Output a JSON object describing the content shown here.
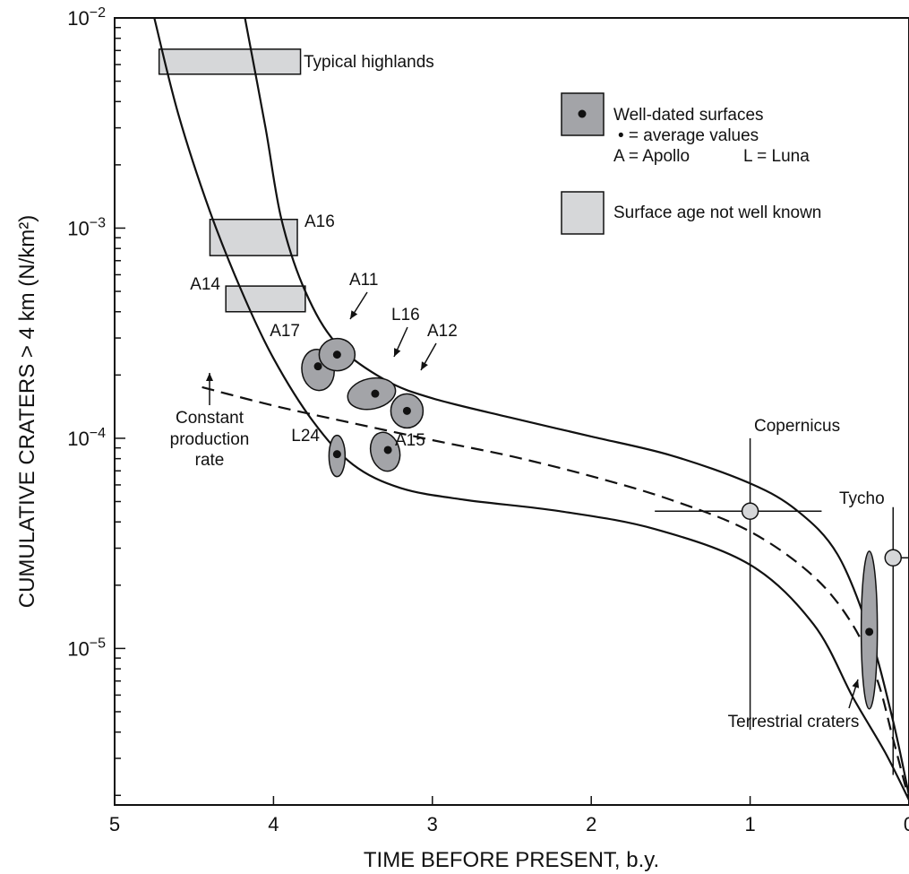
{
  "chart_data": {
    "type": "scatter",
    "title": "",
    "xlabel": "TIME BEFORE PRESENT, b.y.",
    "ylabel": "CUMULATIVE CRATERS > 4 km (N/km²)",
    "x_ticks": [
      "5",
      "4",
      "3",
      "2",
      "1",
      "0"
    ],
    "y_ticks": [
      {
        "base": "10",
        "exp": "−2"
      },
      {
        "base": "10",
        "exp": "−3"
      },
      {
        "base": "10",
        "exp": "−4"
      },
      {
        "base": "10",
        "exp": "−5"
      }
    ],
    "xlim": [
      5,
      0
    ],
    "ylim": [
      1.8e-06,
      0.01
    ],
    "y_scale": "log",
    "legend": {
      "position": "top-right",
      "well_dated": "Well-dated surfaces",
      "dot_note": "• = average values",
      "apollo_note": "A = Apollo",
      "luna_note": "L = Luna",
      "not_well_known": "Surface age not well known",
      "colors": {
        "dark": "#a3a4a8",
        "light": "#d6d7d9"
      }
    },
    "age_bands": [
      {
        "name": "Typical highlands",
        "x": [
          4.72,
          3.83
        ],
        "y": [
          0.0054,
          0.0071
        ]
      },
      {
        "name": "A16",
        "x": [
          4.4,
          3.85
        ],
        "y": [
          0.00074,
          0.0011
        ]
      },
      {
        "name": "A14",
        "x": [
          4.3,
          3.8
        ],
        "y": [
          0.0004,
          0.00053
        ]
      }
    ],
    "well_dated_surfaces": [
      {
        "name": "A17",
        "x": 3.72,
        "y": 0.00022
      },
      {
        "name": "A11",
        "x": 3.6,
        "y": 0.00025
      },
      {
        "name": "L16",
        "x": 3.36,
        "y": 0.000163
      },
      {
        "name": "A12",
        "x": 3.16,
        "y": 0.000135
      },
      {
        "name": "A15",
        "x": 3.28,
        "y": 8.8e-05
      },
      {
        "name": "L24",
        "x": 3.6,
        "y": 8.4e-05
      },
      {
        "name": "Terrestrial craters",
        "x": 0.25,
        "y": 1.2e-05
      }
    ],
    "points_with_error_bars": [
      {
        "name": "Copernicus",
        "x": 1.0,
        "y": 4.5e-05,
        "x_range": [
          1.6,
          0.55
        ],
        "y_range": [
          4.1e-06,
          0.0001
        ]
      },
      {
        "name": "Tycho",
        "x": 0.1,
        "y": 2.7e-05,
        "x_range": [
          0.1,
          0.0
        ],
        "y_range": [
          2.5e-06,
          4.7e-05
        ]
      }
    ],
    "curves": [
      {
        "name": "upper envelope",
        "style": "solid",
        "points": [
          [
            4.18,
            0.01
          ],
          [
            4.05,
            0.003
          ],
          [
            3.95,
            0.0011
          ],
          [
            3.8,
            0.0005
          ],
          [
            3.6,
            0.00028
          ],
          [
            3.3,
            0.00019
          ],
          [
            3.0,
            0.000155
          ],
          [
            2.5,
            0.000125
          ],
          [
            2.0,
            0.000102
          ],
          [
            1.5,
            8.3e-05
          ],
          [
            1.0,
            6.1e-05
          ],
          [
            0.7,
            4.5e-05
          ],
          [
            0.45,
            2.8e-05
          ],
          [
            0.25,
            1.2e-05
          ],
          [
            0.1,
            4.5e-06
          ],
          [
            0.0,
            2e-06
          ]
        ]
      },
      {
        "name": "lower envelope",
        "style": "solid",
        "points": [
          [
            4.75,
            0.01
          ],
          [
            4.6,
            0.0035
          ],
          [
            4.4,
            0.0012
          ],
          [
            4.2,
            0.0005
          ],
          [
            4.0,
            0.00024
          ],
          [
            3.75,
            0.00012
          ],
          [
            3.5,
            7.5e-05
          ],
          [
            3.2,
            5.8e-05
          ],
          [
            2.8,
            5.1e-05
          ],
          [
            2.2,
            4.5e-05
          ],
          [
            1.6,
            3.7e-05
          ],
          [
            1.0,
            2.5e-05
          ],
          [
            0.6,
            1.3e-05
          ],
          [
            0.35,
            5.8e-06
          ],
          [
            0.15,
            3.2e-06
          ],
          [
            0.0,
            1.9e-06
          ]
        ]
      },
      {
        "name": "Constant production rate",
        "style": "dashed",
        "points": [
          [
            4.45,
            0.000175
          ],
          [
            4.0,
            0.000143
          ],
          [
            3.5,
            0.000118
          ],
          [
            3.0,
            9.8e-05
          ],
          [
            2.5,
            8.2e-05
          ],
          [
            2.0,
            6.6e-05
          ],
          [
            1.5,
            5.1e-05
          ],
          [
            1.0,
            3.6e-05
          ],
          [
            0.6,
            2.2e-05
          ],
          [
            0.35,
            1.28e-05
          ],
          [
            0.2,
            7.1e-06
          ],
          [
            0.1,
            3.7e-06
          ],
          [
            0.0,
            1.9e-06
          ]
        ]
      }
    ],
    "annotations": {
      "constant_production": [
        "Constant",
        "production",
        "rate"
      ],
      "copernicus": "Copernicus",
      "tycho": "Tycho",
      "terrestrial": "Terrestrial craters"
    }
  }
}
